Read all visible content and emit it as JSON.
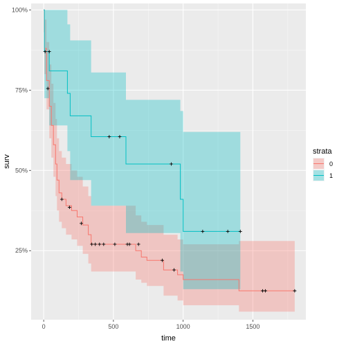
{
  "chart_data": {
    "type": "line",
    "subtype": "kaplan-meier step curves with confidence bands",
    "xlabel": "time",
    "ylabel": "surv",
    "xlim": [
      -90,
      1880
    ],
    "ylim": [
      0.035,
      1.02
    ],
    "x_ticks": [
      0,
      500,
      1000,
      1500
    ],
    "x_minor_ticks": [
      250,
      750,
      1250,
      1750
    ],
    "y_ticks": [
      0.25,
      0.5,
      0.75,
      1.0
    ],
    "y_minor_ticks": [
      0.375,
      0.625,
      0.875
    ],
    "x_tick_labels": [
      "0",
      "500",
      "1000",
      "1500"
    ],
    "y_tick_labels": [
      "25%",
      "50%",
      "75%",
      "100%"
    ],
    "grid": true,
    "panel_background": "#ebebeb",
    "legend": {
      "title": "strata",
      "placement": "right",
      "entries": [
        {
          "label": "0",
          "color": "#f8766d"
        },
        {
          "label": "1",
          "color": "#00bfc4"
        }
      ]
    },
    "series": [
      {
        "name": "0",
        "color": "#f8766d",
        "steps": [
          [
            0,
            1.0
          ],
          [
            5,
            0.88
          ],
          [
            20,
            0.78
          ],
          [
            40,
            0.7
          ],
          [
            55,
            0.64
          ],
          [
            70,
            0.58
          ],
          [
            85,
            0.52
          ],
          [
            95,
            0.47
          ],
          [
            110,
            0.43
          ],
          [
            130,
            0.41
          ],
          [
            160,
            0.39
          ],
          [
            200,
            0.375
          ],
          [
            240,
            0.355
          ],
          [
            280,
            0.33
          ],
          [
            320,
            0.3
          ],
          [
            340,
            0.27
          ],
          [
            660,
            0.25
          ],
          [
            700,
            0.23
          ],
          [
            740,
            0.22
          ],
          [
            860,
            0.19
          ],
          [
            960,
            0.175
          ],
          [
            1000,
            0.16
          ],
          [
            1400,
            0.125
          ],
          [
            1800,
            0.125
          ]
        ],
        "lower": [
          [
            0,
            0.93
          ],
          [
            5,
            0.8
          ],
          [
            20,
            0.69
          ],
          [
            40,
            0.6
          ],
          [
            55,
            0.54
          ],
          [
            70,
            0.48
          ],
          [
            85,
            0.42
          ],
          [
            95,
            0.375
          ],
          [
            110,
            0.34
          ],
          [
            130,
            0.32
          ],
          [
            160,
            0.3
          ],
          [
            200,
            0.285
          ],
          [
            240,
            0.265
          ],
          [
            280,
            0.24
          ],
          [
            320,
            0.21
          ],
          [
            340,
            0.185
          ],
          [
            660,
            0.16
          ],
          [
            700,
            0.15
          ],
          [
            740,
            0.14
          ],
          [
            860,
            0.11
          ],
          [
            960,
            0.095
          ],
          [
            1000,
            0.08
          ],
          [
            1400,
            0.06
          ],
          [
            1800,
            0.06
          ]
        ],
        "upper": [
          [
            0,
            1.0
          ],
          [
            5,
            0.97
          ],
          [
            20,
            0.9
          ],
          [
            40,
            0.83
          ],
          [
            55,
            0.77
          ],
          [
            70,
            0.71
          ],
          [
            85,
            0.66
          ],
          [
            95,
            0.6
          ],
          [
            110,
            0.56
          ],
          [
            130,
            0.54
          ],
          [
            160,
            0.52
          ],
          [
            200,
            0.5
          ],
          [
            240,
            0.48
          ],
          [
            280,
            0.45
          ],
          [
            320,
            0.42
          ],
          [
            340,
            0.39
          ],
          [
            660,
            0.36
          ],
          [
            700,
            0.34
          ],
          [
            740,
            0.33
          ],
          [
            860,
            0.3
          ],
          [
            960,
            0.285
          ],
          [
            1000,
            0.27
          ],
          [
            1400,
            0.28
          ],
          [
            1800,
            0.28
          ]
        ],
        "censored": [
          [
            130,
            0.41
          ],
          [
            185,
            0.385
          ],
          [
            270,
            0.335
          ],
          [
            345,
            0.27
          ],
          [
            370,
            0.27
          ],
          [
            400,
            0.27
          ],
          [
            430,
            0.27
          ],
          [
            510,
            0.27
          ],
          [
            600,
            0.27
          ],
          [
            615,
            0.27
          ],
          [
            680,
            0.27
          ],
          [
            850,
            0.22
          ],
          [
            935,
            0.19
          ],
          [
            1570,
            0.125
          ],
          [
            1590,
            0.125
          ],
          [
            1800,
            0.125
          ]
        ]
      },
      {
        "name": "1",
        "color": "#00bfc4",
        "steps": [
          [
            0,
            1.0
          ],
          [
            5,
            0.87
          ],
          [
            40,
            0.81
          ],
          [
            170,
            0.74
          ],
          [
            190,
            0.67
          ],
          [
            340,
            0.605
          ],
          [
            590,
            0.52
          ],
          [
            980,
            0.41
          ],
          [
            1000,
            0.31
          ],
          [
            1410,
            0.31
          ]
        ],
        "lower": [
          [
            0,
            1.0
          ],
          [
            5,
            0.725
          ],
          [
            40,
            0.64
          ],
          [
            170,
            0.56
          ],
          [
            190,
            0.47
          ],
          [
            340,
            0.39
          ],
          [
            590,
            0.305
          ],
          [
            980,
            0.185
          ],
          [
            1000,
            0.13
          ],
          [
            1410,
            0.13
          ]
        ],
        "upper": [
          [
            0,
            1.0
          ],
          [
            5,
            1.0
          ],
          [
            170,
            0.955
          ],
          [
            190,
            0.905
          ],
          [
            340,
            0.805
          ],
          [
            590,
            0.72
          ],
          [
            980,
            0.685
          ],
          [
            1000,
            0.62
          ],
          [
            1410,
            0.62
          ]
        ],
        "censored": [
          [
            10,
            0.87
          ],
          [
            40,
            0.87
          ],
          [
            30,
            0.755
          ],
          [
            470,
            0.605
          ],
          [
            545,
            0.605
          ],
          [
            915,
            0.52
          ],
          [
            1140,
            0.31
          ],
          [
            1320,
            0.31
          ],
          [
            1410,
            0.31
          ]
        ]
      }
    ]
  }
}
